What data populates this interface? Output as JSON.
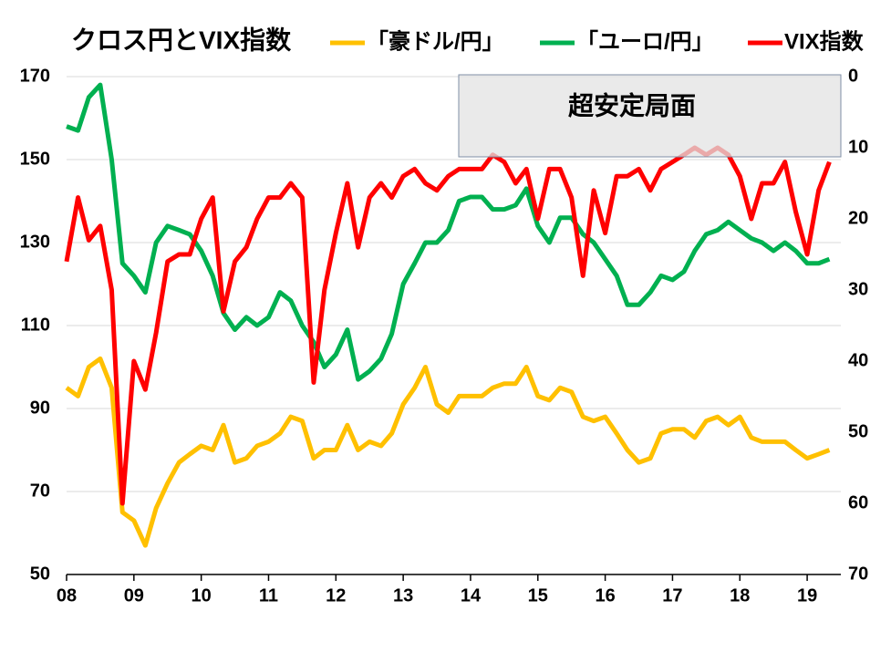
{
  "chart_data": {
    "type": "line",
    "title": "クロス円とVIX指数",
    "annotation": "超安定局面",
    "x": [
      2008,
      2008.17,
      2008.33,
      2008.5,
      2008.67,
      2008.83,
      2009,
      2009.17,
      2009.33,
      2009.5,
      2009.67,
      2009.83,
      2010,
      2010.17,
      2010.33,
      2010.5,
      2010.67,
      2010.83,
      2011,
      2011.17,
      2011.33,
      2011.5,
      2011.67,
      2011.83,
      2012,
      2012.17,
      2012.33,
      2012.5,
      2012.67,
      2012.83,
      2013,
      2013.17,
      2013.33,
      2013.5,
      2013.67,
      2013.83,
      2014,
      2014.17,
      2014.33,
      2014.5,
      2014.67,
      2014.83,
      2015,
      2015.17,
      2015.33,
      2015.5,
      2015.67,
      2015.83,
      2016,
      2016.17,
      2016.33,
      2016.5,
      2016.67,
      2016.83,
      2017,
      2017.17,
      2017.33,
      2017.5,
      2017.67,
      2017.83,
      2018,
      2018.17,
      2018.33,
      2018.5,
      2018.67,
      2018.83,
      2019,
      2019.17,
      2019.33
    ],
    "series": [
      {
        "name": "「豪ドル/円」",
        "color": "#ffc000",
        "values": [
          95,
          93,
          100,
          102,
          95,
          65,
          63,
          57,
          66,
          72,
          77,
          79,
          81,
          80,
          86,
          77,
          78,
          81,
          82,
          84,
          88,
          87,
          78,
          80,
          80,
          86,
          80,
          82,
          81,
          84,
          91,
          95,
          100,
          91,
          89,
          93,
          93,
          93,
          95,
          96,
          96,
          100,
          93,
          92,
          95,
          94,
          88,
          87,
          88,
          84,
          80,
          77,
          78,
          84,
          85,
          85,
          83,
          87,
          88,
          86,
          88,
          83,
          82,
          82,
          82,
          80,
          78,
          79,
          80
        ]
      },
      {
        "name": "「ユーロ/円」",
        "color": "#00b050",
        "values": [
          158,
          157,
          165,
          168,
          150,
          125,
          122,
          118,
          130,
          134,
          133,
          132,
          128,
          122,
          113,
          109,
          112,
          110,
          112,
          118,
          116,
          110,
          106,
          100,
          103,
          109,
          97,
          99,
          102,
          108,
          120,
          125,
          130,
          130,
          133,
          140,
          141,
          141,
          138,
          138,
          139,
          143,
          134,
          130,
          136,
          136,
          132,
          130,
          126,
          122,
          115,
          115,
          118,
          122,
          121,
          123,
          128,
          132,
          133,
          135,
          133,
          131,
          130,
          128,
          130,
          128,
          125,
          125,
          126
        ]
      },
      {
        "name": "VIX指数",
        "color": "#ff0000",
        "axis": "y2",
        "values": [
          26,
          17,
          23,
          21,
          30,
          60,
          40,
          44,
          36,
          26,
          25,
          25,
          20,
          17,
          33,
          26,
          24,
          20,
          17,
          17,
          15,
          17,
          43,
          30,
          22,
          15,
          24,
          17,
          15,
          17,
          14,
          13,
          15,
          16,
          14,
          13,
          13,
          13,
          11,
          12,
          15,
          13,
          20,
          13,
          13,
          17,
          28,
          16,
          22,
          14,
          14,
          13,
          16,
          13,
          12,
          11,
          10,
          11,
          10,
          11,
          14,
          20,
          15,
          15,
          12,
          19,
          25,
          16,
          12
        ]
      }
    ],
    "xlim": [
      2008,
      2019.5
    ],
    "xticks": [
      {
        "value": 2008,
        "label": "08"
      },
      {
        "value": 2009,
        "label": "09"
      },
      {
        "value": 2010,
        "label": "10"
      },
      {
        "value": 2011,
        "label": "11"
      },
      {
        "value": 2012,
        "label": "12"
      },
      {
        "value": 2013,
        "label": "13"
      },
      {
        "value": 2014,
        "label": "14"
      },
      {
        "value": 2015,
        "label": "15"
      },
      {
        "value": 2016,
        "label": "16"
      },
      {
        "value": 2017,
        "label": "17"
      },
      {
        "value": 2018,
        "label": "18"
      },
      {
        "value": 2019,
        "label": "19"
      }
    ],
    "ylim": [
      50,
      170
    ],
    "yticks": [
      50,
      70,
      90,
      110,
      130,
      150,
      170
    ],
    "y2lim": [
      70,
      0
    ],
    "y2ticks": [
      70,
      60,
      50,
      40,
      30,
      20,
      10,
      0
    ],
    "grid": true
  }
}
